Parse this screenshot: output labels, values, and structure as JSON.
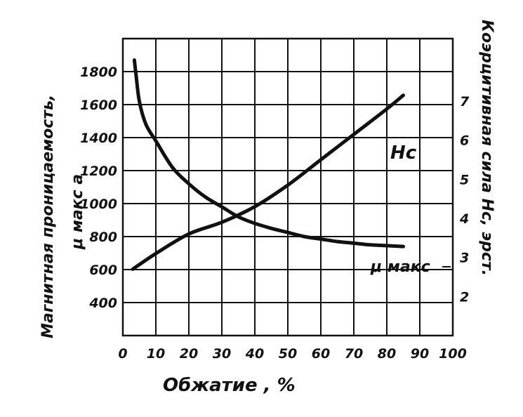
{
  "chart_data": {
    "type": "line",
    "xlabel": "Обжатие , %",
    "ylabel_left_line1": "Магнитная проницаемость,",
    "ylabel_left_line2": "μ макс а",
    "ylabel_right": "Коэрцитивная сила  Hc, эрст.",
    "x_ticks": [
      "0",
      "10",
      "20",
      "30",
      "40",
      "50",
      "60",
      "70",
      "80",
      "90",
      "100"
    ],
    "y_left_ticks": [
      "1800",
      "1600",
      "1400",
      "1200",
      "1000",
      "800",
      "600",
      "400"
    ],
    "y_right_ticks": [
      "7",
      "6",
      "5",
      "4",
      "3",
      "2"
    ],
    "xlim": [
      0,
      100
    ],
    "ylim_left": [
      200,
      2000
    ],
    "ylim_right": [
      1,
      8.6
    ],
    "grid": true,
    "series": [
      {
        "name": "μ макс",
        "axis": "left",
        "x": [
          3.5,
          4,
          5,
          7,
          10,
          15,
          20,
          25,
          30,
          35,
          40,
          45,
          50,
          55,
          60,
          65,
          70,
          75,
          80,
          85
        ],
        "y": [
          1870,
          1780,
          1620,
          1480,
          1380,
          1220,
          1120,
          1040,
          980,
          920,
          880,
          850,
          825,
          800,
          785,
          770,
          760,
          750,
          745,
          740
        ]
      },
      {
        "name": "Hc",
        "axis": "right",
        "x": [
          3,
          10,
          20,
          30,
          40,
          50,
          60,
          70,
          80,
          85
        ],
        "y": [
          2.7,
          3.1,
          3.6,
          3.9,
          4.3,
          4.85,
          5.5,
          6.15,
          6.8,
          7.15
        ]
      }
    ],
    "annotations": {
      "hc_label": "Hc",
      "mu_label": "μ макс"
    }
  }
}
